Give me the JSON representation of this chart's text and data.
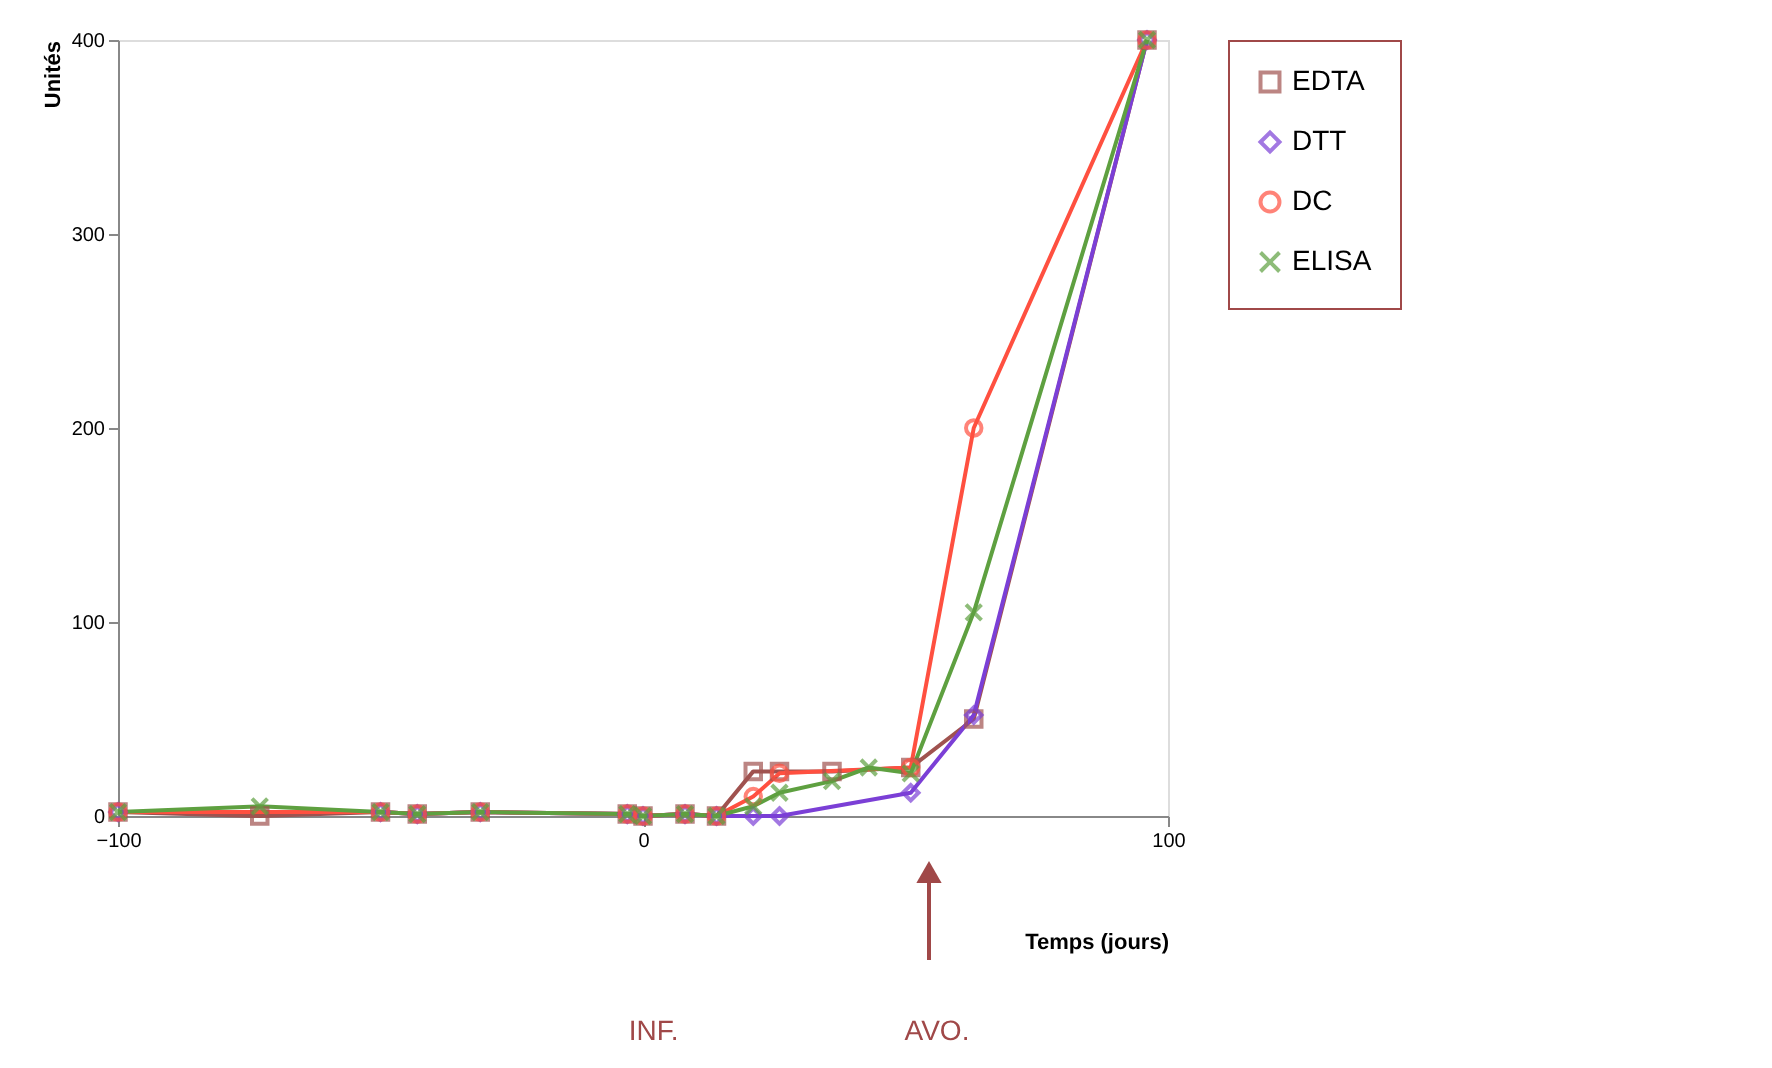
{
  "chart_data": {
    "type": "line",
    "xlabel": "Temps (jours)",
    "ylabel": "Unités",
    "xlim": [
      -100,
      100
    ],
    "xticks": [
      -100,
      0,
      100
    ],
    "ylim": [
      0,
      400
    ],
    "yticks": [
      0,
      100,
      200,
      300,
      400
    ],
    "grid": false,
    "legend": "top right",
    "series": [
      {
        "name": "EDTA",
        "color": "#a0524f",
        "marker": "square",
        "x": [
          -100,
          -73,
          -50,
          -43,
          -31,
          -3,
          0,
          8,
          14,
          21,
          26,
          36,
          51,
          63,
          96
        ],
        "values": [
          2,
          0,
          2,
          1,
          2,
          1,
          0,
          1,
          0,
          23,
          23,
          23,
          25,
          50,
          400
        ]
      },
      {
        "name": "DTT",
        "color": "#7b3fd6",
        "marker": "diamond",
        "x": [
          -100,
          -50,
          -43,
          -31,
          -3,
          0,
          8,
          14,
          21,
          26,
          51,
          63,
          96
        ],
        "values": [
          2,
          2,
          1,
          2,
          1,
          0,
          1,
          0,
          0,
          0,
          12,
          52,
          400
        ]
      },
      {
        "name": "DC",
        "color": "#ff5040",
        "marker": "circle",
        "x": [
          -100,
          -50,
          -43,
          -31,
          -3,
          0,
          8,
          14,
          21,
          26,
          51,
          63,
          96
        ],
        "values": [
          2,
          2,
          1,
          2,
          1,
          0,
          1,
          0,
          10,
          22,
          25,
          200,
          400
        ]
      },
      {
        "name": "ELISA",
        "color": "#5ea040",
        "marker": "cross",
        "x": [
          -100,
          -73,
          -50,
          -43,
          -31,
          -3,
          0,
          8,
          14,
          21,
          26,
          36,
          43,
          51,
          63,
          96
        ],
        "values": [
          2,
          5,
          2,
          1,
          2,
          1,
          0,
          1,
          0,
          5,
          12,
          18,
          25,
          22,
          105,
          400
        ]
      }
    ],
    "annotations": [
      "INF.",
      "AVO."
    ]
  }
}
